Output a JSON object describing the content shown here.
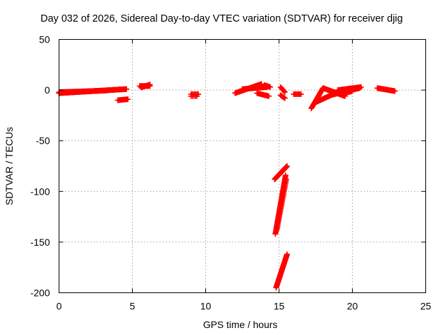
{
  "chart_data": {
    "type": "scatter",
    "title": "Day 032 of 2026, Sidereal Day-to-day VTEC variation (SDTVAR) for receiver djig",
    "xlabel": "GPS time / hours",
    "ylabel": "SDTVAR / TECUs",
    "xlim": [
      0,
      25
    ],
    "ylim": [
      -200,
      50
    ],
    "xticks": [
      0,
      5,
      10,
      15,
      20,
      25
    ],
    "yticks": [
      50,
      0,
      -50,
      -100,
      -150,
      -200
    ],
    "grid": true,
    "marker": "plus",
    "color": "#ff0000",
    "series": [
      {
        "segments": [
          {
            "x0": 0.0,
            "y0": -3,
            "x1": 4.6,
            "y1": 1,
            "step": 0.03
          },
          {
            "x0": 0.0,
            "y0": -2,
            "x1": 3.2,
            "y1": -0.5,
            "step": 0.05
          },
          {
            "x0": 4.0,
            "y0": -10,
            "x1": 4.7,
            "y1": -9,
            "step": 0.05
          },
          {
            "x0": 5.5,
            "y0": 4,
            "x1": 6.2,
            "y1": 4,
            "step": 0.04
          },
          {
            "x0": 5.6,
            "y0": 2.5,
            "x1": 6.2,
            "y1": 5.5,
            "step": 0.06
          },
          {
            "x0": 9.0,
            "y0": -4,
            "x1": 9.5,
            "y1": -4,
            "step": 0.08
          },
          {
            "x0": 9.0,
            "y0": -6,
            "x1": 9.4,
            "y1": -6,
            "step": 0.1
          },
          {
            "x0": 12.0,
            "y0": -3,
            "x1": 13.8,
            "y1": 6,
            "step": 0.04
          },
          {
            "x0": 12.5,
            "y0": 1,
            "x1": 14.2,
            "y1": 3,
            "step": 0.06
          },
          {
            "x0": 13.5,
            "y0": -3,
            "x1": 14.3,
            "y1": -6,
            "step": 0.06
          },
          {
            "x0": 14.0,
            "y0": 5,
            "x1": 14.4,
            "y1": 3,
            "step": 0.06
          },
          {
            "x0": 15.1,
            "y0": 3,
            "x1": 15.4,
            "y1": -2,
            "step": 0.05
          },
          {
            "x0": 15.1,
            "y0": -5,
            "x1": 15.4,
            "y1": -8,
            "step": 0.06
          },
          {
            "x0": 16.0,
            "y0": -4,
            "x1": 16.5,
            "y1": -4,
            "step": 0.07
          },
          {
            "x0": 17.2,
            "y0": -18,
            "x1": 18.0,
            "y1": 2,
            "step": 0.03
          },
          {
            "x0": 17.5,
            "y0": -12,
            "x1": 19.0,
            "y1": -2,
            "step": 0.04
          },
          {
            "x0": 18.0,
            "y0": 2,
            "x1": 19.5,
            "y1": -6,
            "step": 0.04
          },
          {
            "x0": 18.5,
            "y0": -5,
            "x1": 20.5,
            "y1": 2,
            "step": 0.04
          },
          {
            "x0": 19.0,
            "y0": 0,
            "x1": 20.6,
            "y1": 3,
            "step": 0.05
          },
          {
            "x0": 19.2,
            "y0": -4,
            "x1": 20.0,
            "y1": -1,
            "step": 0.06
          },
          {
            "x0": 21.7,
            "y0": 2,
            "x1": 22.9,
            "y1": -1,
            "step": 0.04
          },
          {
            "x0": 14.7,
            "y0": -88,
            "x1": 15.55,
            "y1": -75,
            "step": 0.02
          },
          {
            "x0": 14.75,
            "y0": -142,
            "x1": 15.45,
            "y1": -84,
            "step": 0.012
          },
          {
            "x0": 14.85,
            "y0": -138,
            "x1": 15.5,
            "y1": -88,
            "step": 0.02
          },
          {
            "x0": 14.8,
            "y0": -195,
            "x1": 15.55,
            "y1": -162,
            "step": 0.012
          }
        ]
      }
    ]
  }
}
